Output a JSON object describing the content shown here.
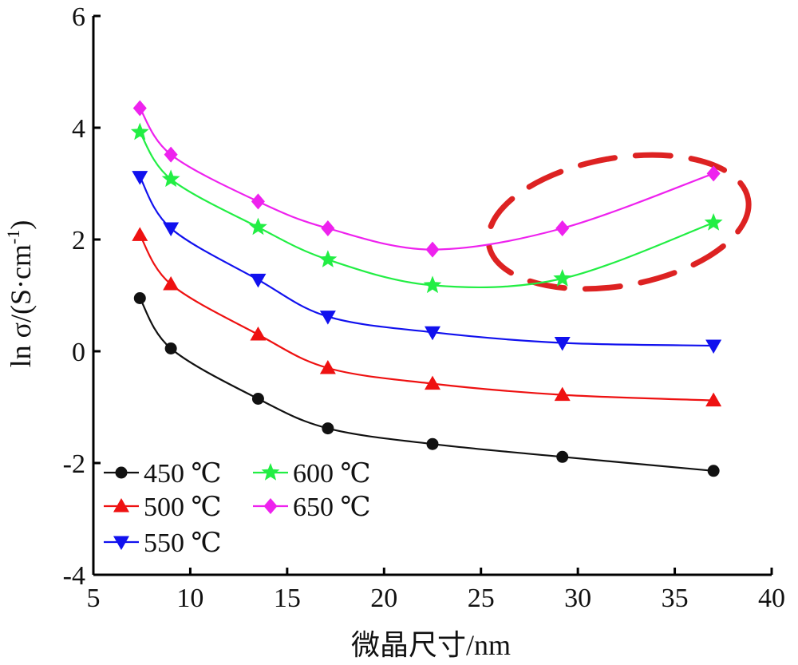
{
  "chart_data": {
    "type": "line",
    "title": "",
    "xlabel": "微晶尺寸/nm",
    "ylabel": "ln σ/(S·cm-1)",
    "ylabel_parts": {
      "main": "ln σ/(S·cm",
      "sup": "-1",
      "end": ")"
    },
    "xlim": [
      5,
      40
    ],
    "ylim": [
      -4,
      6
    ],
    "xticks": [
      5,
      10,
      15,
      20,
      25,
      30,
      35,
      40
    ],
    "yticks": [
      -4,
      -2,
      0,
      2,
      4,
      6
    ],
    "x": [
      7.4,
      9.0,
      13.5,
      17.1,
      22.5,
      29.2,
      37.0
    ],
    "grid": false,
    "legend_position": "bottom-left",
    "series": [
      {
        "name": "450 ℃",
        "color": "#111111",
        "marker": "circle",
        "values": [
          0.95,
          0.05,
          -0.85,
          -1.38,
          -1.66,
          -1.89,
          -2.14
        ]
      },
      {
        "name": "500 ℃",
        "color": "#ee1111",
        "marker": "triangle-up",
        "values": [
          2.08,
          1.2,
          0.3,
          -0.3,
          -0.58,
          -0.78,
          -0.88
        ]
      },
      {
        "name": "550 ℃",
        "color": "#1111ee",
        "marker": "triangle-down",
        "values": [
          3.12,
          2.2,
          1.28,
          0.62,
          0.34,
          0.15,
          0.1
        ]
      },
      {
        "name": "600 ℃",
        "color": "#22ee44",
        "marker": "star",
        "values": [
          3.92,
          3.08,
          2.22,
          1.64,
          1.18,
          1.3,
          2.3
        ]
      },
      {
        "name": "650 ℃",
        "color": "#ee22ee",
        "marker": "diamond",
        "values": [
          4.35,
          3.52,
          2.68,
          2.2,
          1.82,
          2.2,
          3.18
        ]
      }
    ],
    "highlight": {
      "shape": "dashed-ellipse",
      "color": "#dd2222"
    }
  }
}
